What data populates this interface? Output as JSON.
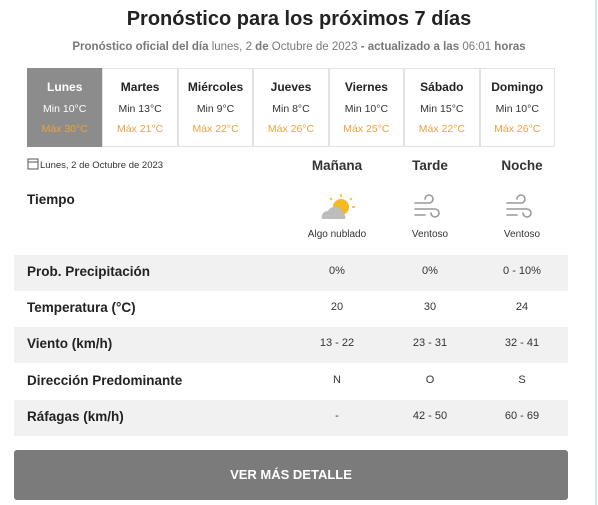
{
  "header": {
    "title": "Pronóstico para los próximos 7 días",
    "subtitle": [
      "Pronóstico oficial del día",
      "lunes, 2",
      "de",
      "Octubre de 2023",
      "- actualizado a las",
      "06:01",
      "horas"
    ]
  },
  "days": [
    {
      "name": "Lunes",
      "min": "Min 10°C",
      "max": "Máx 30°C"
    },
    {
      "name": "Martes",
      "min": "Min 13°C",
      "max": "Máx 21°C"
    },
    {
      "name": "Miércoles",
      "min": "Min 9°C",
      "max": "Máx 22°C"
    },
    {
      "name": "Jueves",
      "min": "Min 8°C",
      "max": "Máx 26°C"
    },
    {
      "name": "Viernes",
      "min": "Min 10°C",
      "max": "Máx 25°C"
    },
    {
      "name": "Sábado",
      "min": "Min 15°C",
      "max": "Máx 22°C"
    },
    {
      "name": "Domingo",
      "min": "Min 10°C",
      "max": "Máx 26°C"
    }
  ],
  "detail": {
    "date": "Lunes, 2 de Octubre de 2023",
    "columns": [
      "Mañana",
      "Tarde",
      "Noche"
    ],
    "weather": {
      "label": "Tiempo",
      "values": [
        "Algo nublado",
        "Ventoso",
        "Ventoso"
      ]
    },
    "rows": [
      {
        "label": "Prob. Precipitación",
        "values": [
          "0%",
          "0%",
          "0 - 10%"
        ]
      },
      {
        "label": "Temperatura (°C)",
        "values": [
          "20",
          "30",
          "24"
        ]
      },
      {
        "label": "Viento (km/h)",
        "values": [
          "13 - 22",
          "23 - 31",
          "32 - 41"
        ]
      },
      {
        "label": "Dirección Predominante",
        "values": [
          "N",
          "O",
          "S"
        ]
      },
      {
        "label": "Ráfagas (km/h)",
        "values": [
          "-",
          "42 - 50",
          "60 - 69"
        ]
      }
    ]
  },
  "button": "VER MÁS DETALLE"
}
